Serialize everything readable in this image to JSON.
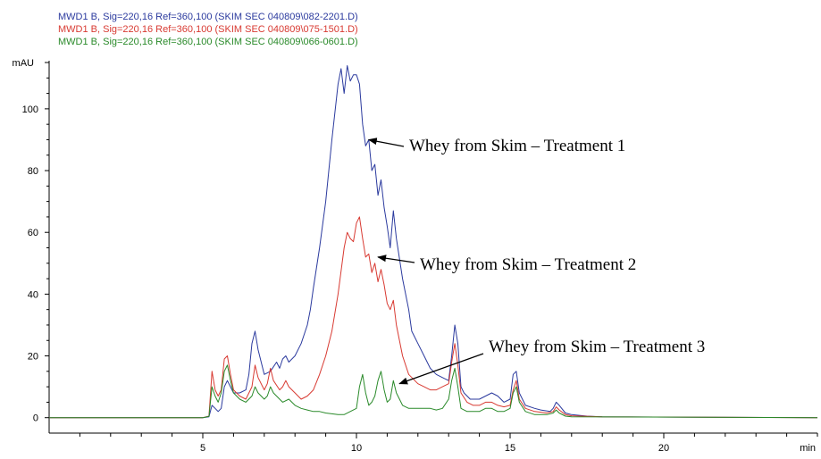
{
  "chart_data": {
    "type": "line",
    "title": "",
    "xlabel": "",
    "ylabel": "mAU",
    "x_unit_label": "min",
    "xlim": [
      0,
      25
    ],
    "ylim": [
      -5,
      115
    ],
    "x_ticks": [
      5,
      10,
      15,
      20
    ],
    "y_ticks": [
      0,
      20,
      40,
      60,
      80,
      100
    ],
    "grid": false,
    "legend_position": "top-left",
    "series": [
      {
        "name": "MWD1 B, Sig=220,16 Ref=360,100 (SKIM SEC 040809\\082-2201.D)",
        "color": "#2b3a9e",
        "points": [
          [
            0,
            0
          ],
          [
            5.0,
            0
          ],
          [
            5.2,
            0.3
          ],
          [
            5.3,
            4
          ],
          [
            5.4,
            3
          ],
          [
            5.5,
            2
          ],
          [
            5.6,
            3
          ],
          [
            5.7,
            10
          ],
          [
            5.8,
            12
          ],
          [
            6.0,
            8
          ],
          [
            6.2,
            8
          ],
          [
            6.4,
            9
          ],
          [
            6.5,
            14
          ],
          [
            6.6,
            24
          ],
          [
            6.7,
            28
          ],
          [
            6.8,
            22
          ],
          [
            7.0,
            14
          ],
          [
            7.2,
            15
          ],
          [
            7.4,
            18
          ],
          [
            7.5,
            16
          ],
          [
            7.6,
            19
          ],
          [
            7.7,
            20
          ],
          [
            7.8,
            18
          ],
          [
            8.0,
            20
          ],
          [
            8.2,
            24
          ],
          [
            8.4,
            30
          ],
          [
            8.5,
            35
          ],
          [
            8.6,
            42
          ],
          [
            8.8,
            55
          ],
          [
            9.0,
            70
          ],
          [
            9.2,
            90
          ],
          [
            9.4,
            108
          ],
          [
            9.5,
            113
          ],
          [
            9.6,
            105
          ],
          [
            9.7,
            114
          ],
          [
            9.8,
            109
          ],
          [
            9.9,
            111
          ],
          [
            10.0,
            111
          ],
          [
            10.1,
            108
          ],
          [
            10.2,
            95
          ],
          [
            10.3,
            88
          ],
          [
            10.4,
            90
          ],
          [
            10.5,
            80
          ],
          [
            10.6,
            82
          ],
          [
            10.7,
            72
          ],
          [
            10.8,
            77
          ],
          [
            10.9,
            68
          ],
          [
            11.0,
            62
          ],
          [
            11.1,
            55
          ],
          [
            11.2,
            67
          ],
          [
            11.3,
            58
          ],
          [
            11.5,
            45
          ],
          [
            11.7,
            35
          ],
          [
            11.8,
            28
          ],
          [
            12.0,
            24
          ],
          [
            12.2,
            20
          ],
          [
            12.4,
            16
          ],
          [
            12.6,
            14
          ],
          [
            12.8,
            13
          ],
          [
            13.0,
            12
          ],
          [
            13.1,
            20
          ],
          [
            13.2,
            30
          ],
          [
            13.3,
            24
          ],
          [
            13.4,
            10
          ],
          [
            13.5,
            8
          ],
          [
            13.7,
            6
          ],
          [
            14.0,
            6
          ],
          [
            14.2,
            7
          ],
          [
            14.4,
            8
          ],
          [
            14.6,
            7
          ],
          [
            14.8,
            5
          ],
          [
            15.0,
            6
          ],
          [
            15.1,
            14
          ],
          [
            15.2,
            15
          ],
          [
            15.3,
            8
          ],
          [
            15.5,
            4
          ],
          [
            15.8,
            3
          ],
          [
            16.0,
            2.5
          ],
          [
            16.3,
            2
          ],
          [
            16.4,
            3
          ],
          [
            16.5,
            5
          ],
          [
            16.6,
            4
          ],
          [
            16.8,
            1.5
          ],
          [
            17.0,
            1
          ],
          [
            17.5,
            0.5
          ],
          [
            18.0,
            0.3
          ],
          [
            25,
            0
          ]
        ]
      },
      {
        "name": "MWD1 B, Sig=220,16 Ref=360,100 (SKIM SEC 040809\\075-1501.D)",
        "color": "#d83a32",
        "points": [
          [
            0,
            0
          ],
          [
            5.0,
            0
          ],
          [
            5.2,
            0.5
          ],
          [
            5.3,
            15
          ],
          [
            5.4,
            9
          ],
          [
            5.5,
            7
          ],
          [
            5.6,
            9
          ],
          [
            5.7,
            19
          ],
          [
            5.8,
            20
          ],
          [
            5.9,
            14
          ],
          [
            6.0,
            9
          ],
          [
            6.2,
            7
          ],
          [
            6.4,
            6
          ],
          [
            6.6,
            10
          ],
          [
            6.7,
            17
          ],
          [
            6.8,
            13
          ],
          [
            7.0,
            9
          ],
          [
            7.1,
            11
          ],
          [
            7.2,
            16
          ],
          [
            7.3,
            12
          ],
          [
            7.5,
            9
          ],
          [
            7.6,
            10
          ],
          [
            7.7,
            12
          ],
          [
            7.8,
            10
          ],
          [
            8.0,
            8
          ],
          [
            8.2,
            6
          ],
          [
            8.4,
            7
          ],
          [
            8.6,
            9
          ],
          [
            8.8,
            14
          ],
          [
            9.0,
            20
          ],
          [
            9.2,
            28
          ],
          [
            9.4,
            40
          ],
          [
            9.6,
            55
          ],
          [
            9.7,
            60
          ],
          [
            9.8,
            58
          ],
          [
            9.9,
            57
          ],
          [
            10.0,
            63
          ],
          [
            10.1,
            65
          ],
          [
            10.2,
            58
          ],
          [
            10.3,
            52
          ],
          [
            10.4,
            53
          ],
          [
            10.5,
            47
          ],
          [
            10.6,
            50
          ],
          [
            10.7,
            44
          ],
          [
            10.8,
            48
          ],
          [
            10.9,
            43
          ],
          [
            11.0,
            37
          ],
          [
            11.1,
            35
          ],
          [
            11.2,
            38
          ],
          [
            11.3,
            30
          ],
          [
            11.5,
            20
          ],
          [
            11.7,
            14
          ],
          [
            12.0,
            11
          ],
          [
            12.2,
            10
          ],
          [
            12.4,
            9
          ],
          [
            12.6,
            9
          ],
          [
            12.8,
            10
          ],
          [
            13.0,
            11
          ],
          [
            13.1,
            18
          ],
          [
            13.2,
            24
          ],
          [
            13.3,
            17
          ],
          [
            13.4,
            8
          ],
          [
            13.6,
            5
          ],
          [
            13.8,
            4
          ],
          [
            14.0,
            4
          ],
          [
            14.2,
            5
          ],
          [
            14.4,
            5
          ],
          [
            14.6,
            4
          ],
          [
            14.8,
            3.5
          ],
          [
            15.0,
            4
          ],
          [
            15.1,
            9
          ],
          [
            15.2,
            12
          ],
          [
            15.3,
            6
          ],
          [
            15.5,
            3
          ],
          [
            15.8,
            2
          ],
          [
            16.2,
            1.5
          ],
          [
            16.4,
            2
          ],
          [
            16.5,
            3.5
          ],
          [
            16.6,
            2.5
          ],
          [
            16.8,
            1
          ],
          [
            17.0,
            0.6
          ],
          [
            18.0,
            0.3
          ],
          [
            25,
            0
          ]
        ]
      },
      {
        "name": "MWD1 B, Sig=220,16 Ref=360,100 (SKIM SEC 040809\\066-0601.D)",
        "color": "#2a8a2a",
        "points": [
          [
            0,
            0
          ],
          [
            5.0,
            0
          ],
          [
            5.2,
            0.4
          ],
          [
            5.3,
            10
          ],
          [
            5.4,
            7
          ],
          [
            5.5,
            5
          ],
          [
            5.6,
            8
          ],
          [
            5.7,
            15
          ],
          [
            5.8,
            17
          ],
          [
            5.9,
            12
          ],
          [
            6.0,
            8
          ],
          [
            6.2,
            6
          ],
          [
            6.4,
            5
          ],
          [
            6.6,
            7
          ],
          [
            6.7,
            10
          ],
          [
            6.8,
            8
          ],
          [
            7.0,
            6
          ],
          [
            7.1,
            7
          ],
          [
            7.2,
            10
          ],
          [
            7.3,
            8
          ],
          [
            7.5,
            6
          ],
          [
            7.6,
            5
          ],
          [
            7.8,
            6
          ],
          [
            8.0,
            4
          ],
          [
            8.2,
            3
          ],
          [
            8.4,
            2.5
          ],
          [
            8.6,
            2
          ],
          [
            8.8,
            2
          ],
          [
            9.0,
            1.5
          ],
          [
            9.4,
            1
          ],
          [
            9.6,
            1
          ],
          [
            9.8,
            2
          ],
          [
            10.0,
            3
          ],
          [
            10.1,
            10
          ],
          [
            10.2,
            14
          ],
          [
            10.3,
            8
          ],
          [
            10.4,
            4
          ],
          [
            10.5,
            5
          ],
          [
            10.6,
            7
          ],
          [
            10.7,
            12
          ],
          [
            10.8,
            15
          ],
          [
            10.9,
            9
          ],
          [
            11.0,
            5
          ],
          [
            11.1,
            6
          ],
          [
            11.2,
            12
          ],
          [
            11.3,
            8
          ],
          [
            11.5,
            4
          ],
          [
            11.7,
            3
          ],
          [
            12.0,
            3
          ],
          [
            12.2,
            3
          ],
          [
            12.4,
            3
          ],
          [
            12.6,
            2.5
          ],
          [
            12.8,
            3
          ],
          [
            13.0,
            6
          ],
          [
            13.1,
            12
          ],
          [
            13.2,
            16
          ],
          [
            13.3,
            10
          ],
          [
            13.4,
            3
          ],
          [
            13.6,
            2
          ],
          [
            14.0,
            2
          ],
          [
            14.2,
            3
          ],
          [
            14.4,
            3
          ],
          [
            14.6,
            2
          ],
          [
            14.8,
            2
          ],
          [
            15.0,
            3
          ],
          [
            15.1,
            8
          ],
          [
            15.2,
            10
          ],
          [
            15.3,
            5
          ],
          [
            15.5,
            2
          ],
          [
            15.8,
            1
          ],
          [
            16.2,
            1
          ],
          [
            16.4,
            1.5
          ],
          [
            16.5,
            2.5
          ],
          [
            16.6,
            1.5
          ],
          [
            16.8,
            0.5
          ],
          [
            17.0,
            0.3
          ],
          [
            25,
            0
          ]
        ]
      }
    ],
    "annotations": [
      {
        "text": "Whey from Skim – Treatment 1",
        "series": 0,
        "target_x": 10.4,
        "target_y": 90
      },
      {
        "text": "Whey from Skim – Treatment 2",
        "series": 1,
        "target_x": 10.7,
        "target_y": 52
      },
      {
        "text": "Whey from Skim – Treatment 3",
        "series": 2,
        "target_x": 11.4,
        "target_y": 11
      }
    ]
  }
}
